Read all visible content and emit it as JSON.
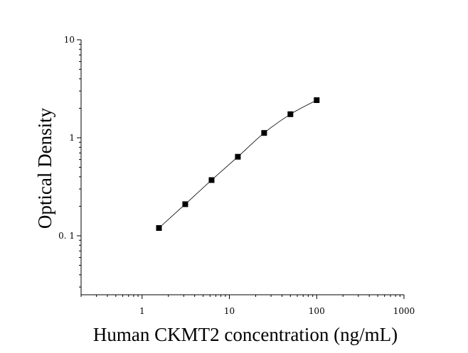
{
  "chart_data": {
    "type": "scatter",
    "title": "",
    "xlabel": "Human CKMT2 concentration (ng/mL)",
    "ylabel": "Optical Density",
    "x_scale": "log",
    "y_scale": "log",
    "xlim": [
      0.2,
      1000
    ],
    "ylim": [
      0.025,
      10
    ],
    "x_ticks": [
      {
        "value": 1,
        "label": "1"
      },
      {
        "value": 10,
        "label": "10"
      },
      {
        "value": 100,
        "label": "100"
      },
      {
        "value": 1000,
        "label": "1000"
      }
    ],
    "y_ticks": [
      {
        "value": 0.1,
        "label": "0. 1"
      },
      {
        "value": 1,
        "label": "1"
      },
      {
        "value": 10,
        "label": "10"
      }
    ],
    "grid": false,
    "legend": "none",
    "marker": "square",
    "color": "#000000",
    "series": [
      {
        "x": [
          1.56,
          3.12,
          6.25,
          12.5,
          25,
          50,
          100
        ],
        "y": [
          0.12,
          0.21,
          0.37,
          0.64,
          1.12,
          1.74,
          2.42
        ]
      }
    ],
    "fit_curve": true
  }
}
